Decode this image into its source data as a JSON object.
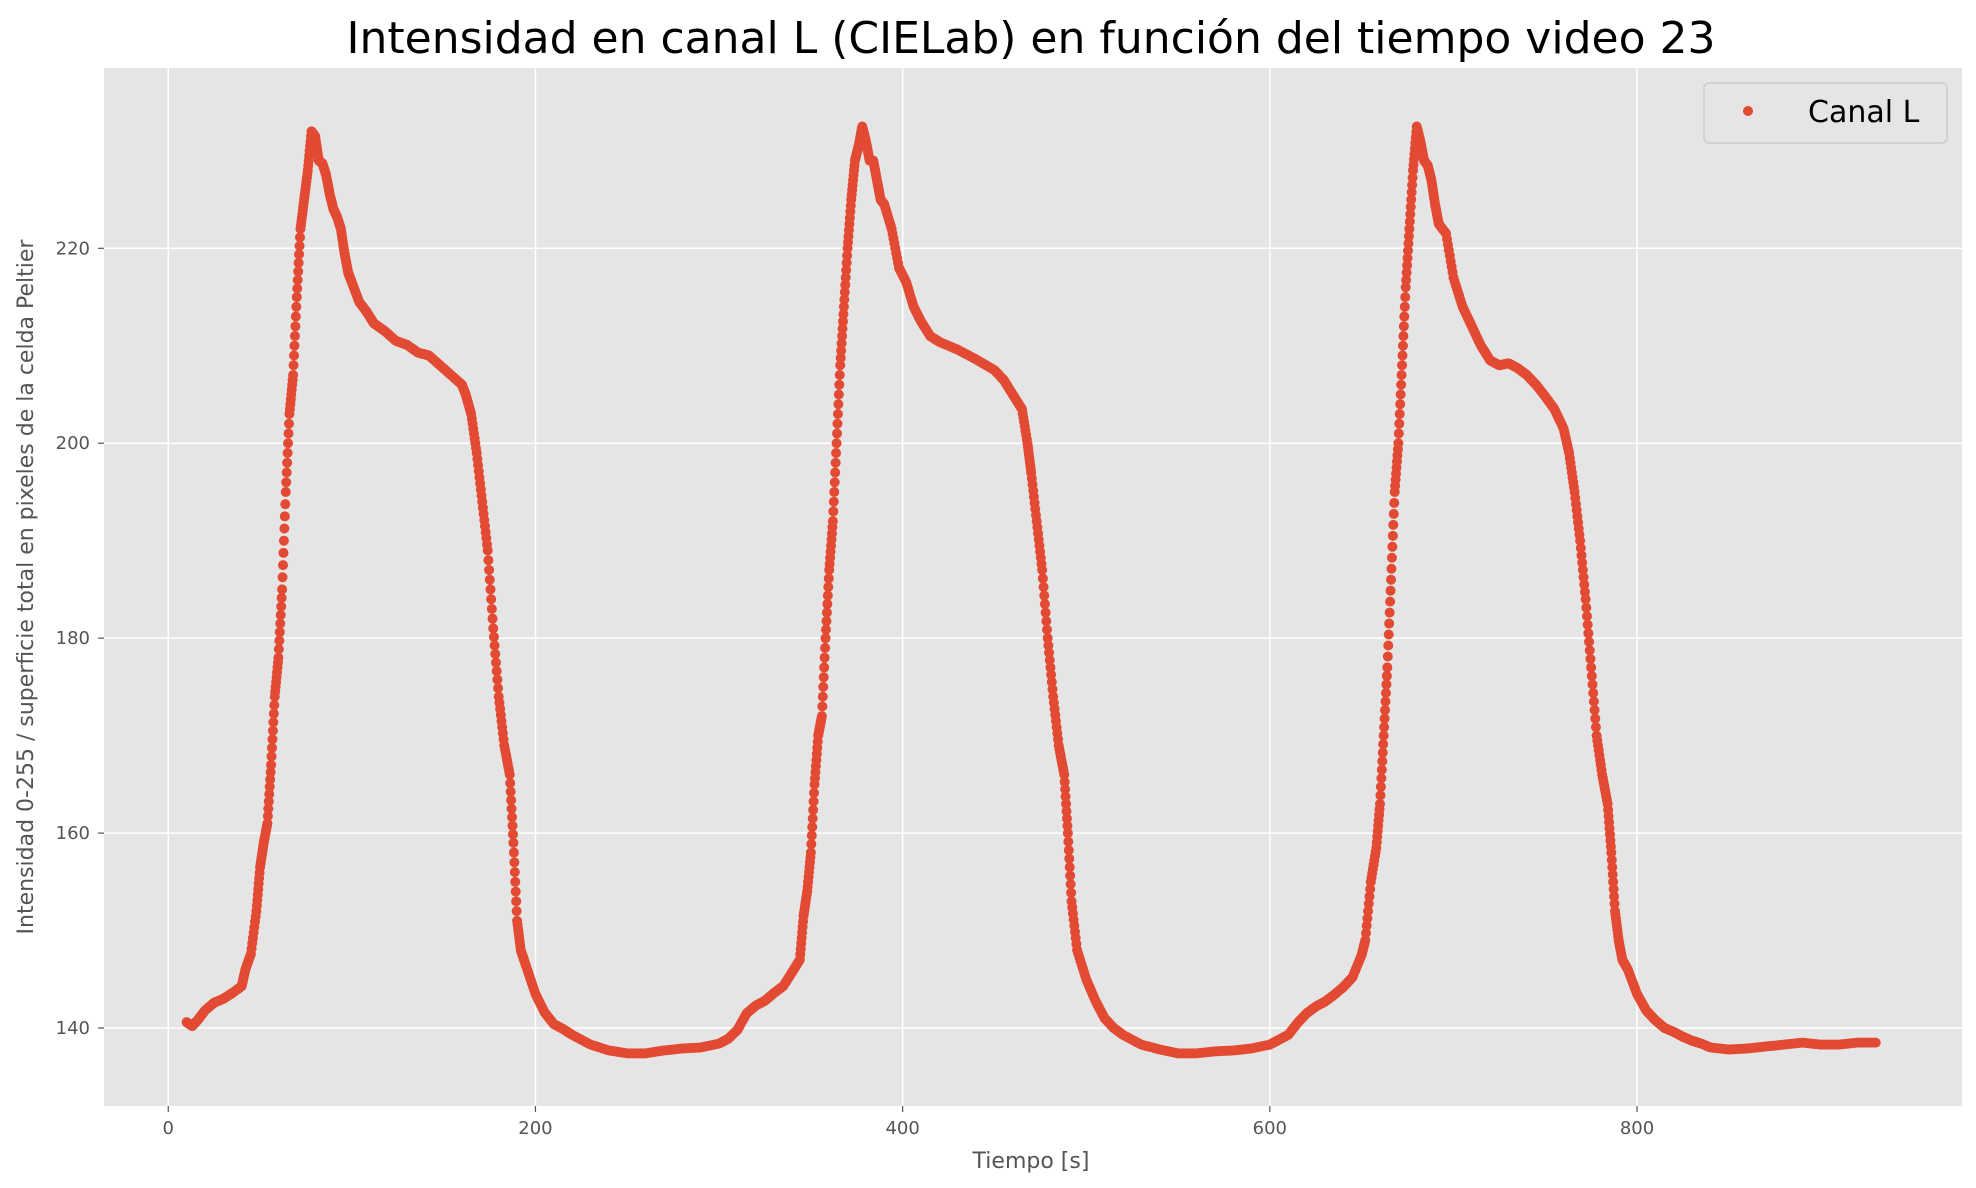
{
  "chart_data": {
    "type": "scatter",
    "title": "Intensidad en canal L (CIELab) en función del tiempo video 23",
    "xlabel": "Tiempo [s]",
    "ylabel": "Intensidad 0-255 / superficie total en pixeles de la celda Peltier",
    "xlim": [
      -35,
      977
    ],
    "ylim": [
      132,
      238.5
    ],
    "xticks": [
      0,
      200,
      400,
      600,
      800
    ],
    "yticks": [
      140,
      160,
      180,
      200,
      220
    ],
    "grid": true,
    "legend": {
      "position": "top-right"
    },
    "series": [
      {
        "name": "Canal L",
        "color": "#E24A33",
        "points": [
          [
            10,
            140.6
          ],
          [
            13,
            140.2
          ],
          [
            16,
            140.8
          ],
          [
            20,
            141.8
          ],
          [
            25,
            142.6
          ],
          [
            30,
            143.0
          ],
          [
            35,
            143.6
          ],
          [
            40,
            144.3
          ],
          [
            42,
            146.0
          ],
          [
            45,
            147.6
          ],
          [
            48,
            152.0
          ],
          [
            50,
            156.5
          ],
          [
            52,
            159.0
          ],
          [
            54,
            161.0
          ],
          [
            56,
            167.0
          ],
          [
            58,
            174.0
          ],
          [
            60,
            178.0
          ],
          [
            62,
            185.0
          ],
          [
            64,
            195.0
          ],
          [
            66,
            203.0
          ],
          [
            68,
            207.0
          ],
          [
            70,
            215.0
          ],
          [
            72,
            222.0
          ],
          [
            74,
            225.0
          ],
          [
            76,
            228.0
          ],
          [
            78,
            232.0
          ],
          [
            80,
            231.5
          ],
          [
            82,
            229.0
          ],
          [
            84,
            228.7
          ],
          [
            86,
            227.5
          ],
          [
            88,
            225.5
          ],
          [
            90,
            224.0
          ],
          [
            92,
            223.2
          ],
          [
            94,
            222.0
          ],
          [
            96,
            219.5
          ],
          [
            98,
            217.5
          ],
          [
            100,
            216.5
          ],
          [
            104,
            214.5
          ],
          [
            108,
            213.5
          ],
          [
            112,
            212.3
          ],
          [
            118,
            211.5
          ],
          [
            124,
            210.5
          ],
          [
            130,
            210.1
          ],
          [
            136,
            209.3
          ],
          [
            142,
            209.0
          ],
          [
            148,
            208.0
          ],
          [
            154,
            207.0
          ],
          [
            160,
            206.0
          ],
          [
            162,
            205.0
          ],
          [
            165,
            203.0
          ],
          [
            168,
            199.0
          ],
          [
            171,
            194.0
          ],
          [
            174,
            189.0
          ],
          [
            177,
            181.0
          ],
          [
            180,
            174.0
          ],
          [
            183,
            169.0
          ],
          [
            186,
            166.0
          ],
          [
            188,
            159.0
          ],
          [
            190,
            151.0
          ],
          [
            192,
            148.0
          ],
          [
            195,
            146.3
          ],
          [
            200,
            143.5
          ],
          [
            205,
            141.6
          ],
          [
            210,
            140.4
          ],
          [
            215,
            139.9
          ],
          [
            220,
            139.3
          ],
          [
            230,
            138.3
          ],
          [
            240,
            137.7
          ],
          [
            250,
            137.4
          ],
          [
            260,
            137.4
          ],
          [
            270,
            137.7
          ],
          [
            280,
            137.9
          ],
          [
            290,
            138.0
          ],
          [
            300,
            138.4
          ],
          [
            305,
            138.9
          ],
          [
            310,
            139.8
          ],
          [
            315,
            141.5
          ],
          [
            320,
            142.3
          ],
          [
            325,
            142.8
          ],
          [
            330,
            143.6
          ],
          [
            335,
            144.3
          ],
          [
            340,
            145.8
          ],
          [
            344,
            147.0
          ],
          [
            346,
            151.5
          ],
          [
            348,
            154.0
          ],
          [
            350,
            158.0
          ],
          [
            352,
            165.0
          ],
          [
            354,
            170.0
          ],
          [
            356,
            172.0
          ],
          [
            358,
            180.0
          ],
          [
            360,
            187.0
          ],
          [
            362,
            192.0
          ],
          [
            364,
            200.0
          ],
          [
            366,
            208.0
          ],
          [
            368,
            214.0
          ],
          [
            370,
            220.0
          ],
          [
            372,
            225.0
          ],
          [
            374,
            229.0
          ],
          [
            376,
            230.5
          ],
          [
            378,
            232.5
          ],
          [
            380,
            231.0
          ],
          [
            382,
            229.0
          ],
          [
            384,
            229.0
          ],
          [
            386,
            227.0
          ],
          [
            388,
            225.0
          ],
          [
            390,
            224.5
          ],
          [
            394,
            222.0
          ],
          [
            398,
            218.0
          ],
          [
            402,
            216.5
          ],
          [
            406,
            214.0
          ],
          [
            410,
            212.5
          ],
          [
            415,
            211.0
          ],
          [
            420,
            210.4
          ],
          [
            430,
            209.6
          ],
          [
            440,
            208.6
          ],
          [
            450,
            207.5
          ],
          [
            455,
            206.5
          ],
          [
            460,
            205.0
          ],
          [
            465,
            203.5
          ],
          [
            468,
            200.0
          ],
          [
            470,
            197.0
          ],
          [
            473,
            192.0
          ],
          [
            476,
            187.0
          ],
          [
            479,
            180.0
          ],
          [
            482,
            174.0
          ],
          [
            485,
            169.0
          ],
          [
            488,
            166.0
          ],
          [
            490,
            160.0
          ],
          [
            492,
            153.0
          ],
          [
            495,
            148.0
          ],
          [
            500,
            145.0
          ],
          [
            505,
            142.8
          ],
          [
            510,
            141.0
          ],
          [
            515,
            140.0
          ],
          [
            520,
            139.3
          ],
          [
            530,
            138.3
          ],
          [
            540,
            137.8
          ],
          [
            550,
            137.4
          ],
          [
            560,
            137.4
          ],
          [
            570,
            137.6
          ],
          [
            580,
            137.7
          ],
          [
            590,
            137.9
          ],
          [
            600,
            138.3
          ],
          [
            605,
            138.8
          ],
          [
            610,
            139.3
          ],
          [
            615,
            140.5
          ],
          [
            620,
            141.5
          ],
          [
            625,
            142.2
          ],
          [
            630,
            142.7
          ],
          [
            635,
            143.4
          ],
          [
            640,
            144.2
          ],
          [
            645,
            145.2
          ],
          [
            650,
            147.5
          ],
          [
            652,
            149.0
          ],
          [
            655,
            155.0
          ],
          [
            658,
            158.5
          ],
          [
            660,
            163.0
          ],
          [
            662,
            170.0
          ],
          [
            664,
            177.0
          ],
          [
            666,
            186.0
          ],
          [
            668,
            195.0
          ],
          [
            670,
            200.0
          ],
          [
            672,
            208.0
          ],
          [
            674,
            216.0
          ],
          [
            676,
            222.0
          ],
          [
            678,
            228.0
          ],
          [
            680,
            232.5
          ],
          [
            682,
            231.0
          ],
          [
            684,
            229.0
          ],
          [
            686,
            228.5
          ],
          [
            688,
            227.0
          ],
          [
            690,
            224.5
          ],
          [
            692,
            222.5
          ],
          [
            696,
            221.5
          ],
          [
            700,
            217.0
          ],
          [
            705,
            214.0
          ],
          [
            710,
            212.0
          ],
          [
            715,
            210.0
          ],
          [
            720,
            208.5
          ],
          [
            725,
            208.0
          ],
          [
            730,
            208.2
          ],
          [
            735,
            207.7
          ],
          [
            740,
            207.0
          ],
          [
            745,
            206.0
          ],
          [
            750,
            204.8
          ],
          [
            755,
            203.5
          ],
          [
            760,
            201.5
          ],
          [
            763,
            199.0
          ],
          [
            766,
            195.0
          ],
          [
            769,
            190.0
          ],
          [
            772,
            184.0
          ],
          [
            775,
            177.0
          ],
          [
            778,
            170.0
          ],
          [
            781,
            166.0
          ],
          [
            784,
            163.0
          ],
          [
            786,
            158.0
          ],
          [
            788,
            152.0
          ],
          [
            790,
            149.0
          ],
          [
            792,
            147.0
          ],
          [
            795,
            146.0
          ],
          [
            800,
            143.5
          ],
          [
            805,
            141.8
          ],
          [
            810,
            140.8
          ],
          [
            815,
            140.0
          ],
          [
            820,
            139.6
          ],
          [
            825,
            139.1
          ],
          [
            830,
            138.7
          ],
          [
            835,
            138.4
          ],
          [
            840,
            138.0
          ],
          [
            850,
            137.8
          ],
          [
            860,
            137.9
          ],
          [
            870,
            138.1
          ],
          [
            880,
            138.3
          ],
          [
            890,
            138.5
          ],
          [
            900,
            138.3
          ],
          [
            910,
            138.3
          ],
          [
            920,
            138.5
          ],
          [
            930,
            138.5
          ]
        ]
      }
    ]
  }
}
